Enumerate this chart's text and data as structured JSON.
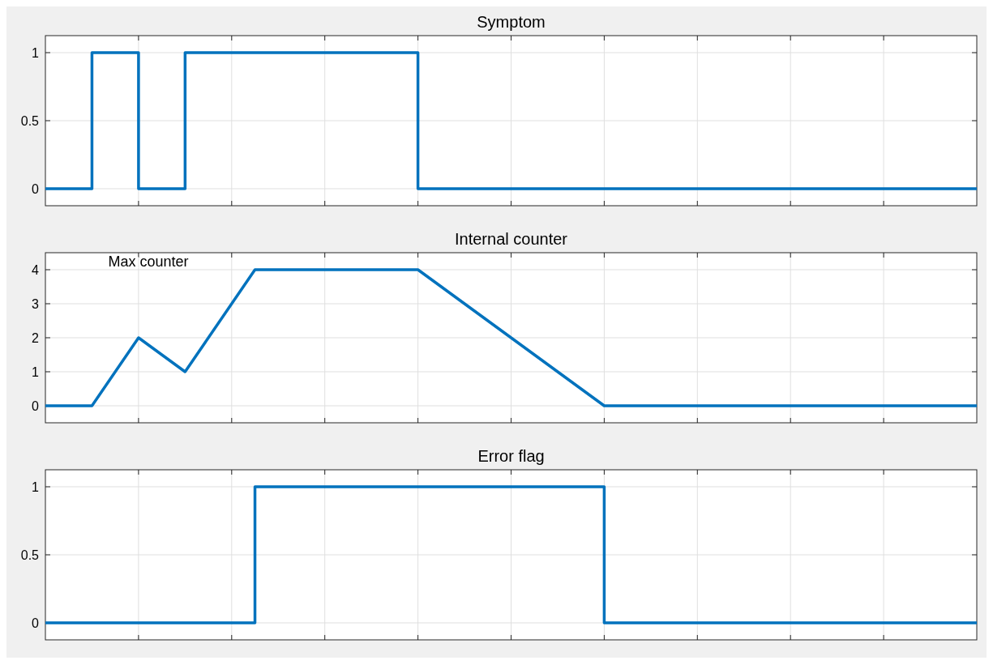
{
  "chart_data": [
    {
      "type": "step",
      "title": "Symptom",
      "categories": [
        null,
        null,
        null,
        null,
        null,
        null,
        null,
        null,
        null,
        null,
        null,
        null,
        null,
        null,
        null,
        null,
        null,
        null,
        null,
        null,
        null,
        null,
        null,
        null,
        null,
        null,
        null,
        null,
        null,
        null,
        null,
        null,
        null,
        null,
        null,
        null,
        null,
        null,
        null,
        null,
        null
      ],
      "ylim": [
        -0.125,
        1.125
      ],
      "yticks": [
        0,
        0.5,
        1
      ],
      "grid": true,
      "series": [
        {
          "color": "#0072bd",
          "values": [
            0,
            0,
            1,
            1,
            0,
            0,
            1,
            1,
            1,
            1,
            1,
            1,
            1,
            1,
            1,
            1,
            0,
            0,
            0,
            0,
            0,
            0,
            0,
            0,
            0,
            0,
            0,
            0,
            0,
            0,
            0,
            0,
            0,
            0,
            0,
            0,
            0,
            0,
            0,
            0,
            0
          ]
        }
      ]
    },
    {
      "type": "line",
      "title": "Internal counter",
      "categories": [
        null,
        null,
        null,
        null,
        null,
        null,
        null,
        null,
        null,
        null,
        null,
        null,
        null,
        null,
        null,
        null,
        null,
        null,
        null,
        null,
        null,
        null,
        null,
        null,
        null,
        null,
        null,
        null,
        null,
        null,
        null,
        null,
        null,
        null,
        null,
        null,
        null,
        null,
        null,
        null,
        null
      ],
      "ylim": [
        -0.5,
        4.5
      ],
      "yticks": [
        0,
        1,
        2,
        3,
        4
      ],
      "grid": true,
      "annotations": [
        "Max counter"
      ],
      "series": [
        {
          "color": "#0072bd",
          "values": [
            0,
            0,
            0,
            1,
            2,
            1.5,
            1,
            2,
            3,
            4,
            4,
            4,
            4,
            4,
            4,
            4,
            4,
            3.5,
            3,
            2.5,
            2,
            1.5,
            1,
            0.5,
            0,
            0,
            0,
            0,
            0,
            0,
            0,
            0,
            0,
            0,
            0,
            0,
            0,
            0,
            0,
            0,
            0
          ]
        }
      ]
    },
    {
      "type": "step",
      "title": "Error flag",
      "categories": [
        null,
        null,
        null,
        null,
        null,
        null,
        null,
        null,
        null,
        null,
        null,
        null,
        null,
        null,
        null,
        null,
        null,
        null,
        null,
        null,
        null,
        null,
        null,
        null,
        null,
        null,
        null,
        null,
        null,
        null,
        null,
        null,
        null,
        null,
        null,
        null,
        null,
        null,
        null,
        null,
        null
      ],
      "ylim": [
        -0.125,
        1.125
      ],
      "yticks": [
        0,
        0.5,
        1
      ],
      "grid": true,
      "series": [
        {
          "color": "#0072bd",
          "values": [
            0,
            0,
            0,
            0,
            0,
            0,
            0,
            0,
            0,
            1,
            1,
            1,
            1,
            1,
            1,
            1,
            1,
            1,
            1,
            1,
            1,
            1,
            1,
            1,
            0,
            0,
            0,
            0,
            0,
            0,
            0,
            0,
            0,
            0,
            0,
            0,
            0,
            0,
            0,
            0,
            0
          ]
        }
      ]
    }
  ]
}
